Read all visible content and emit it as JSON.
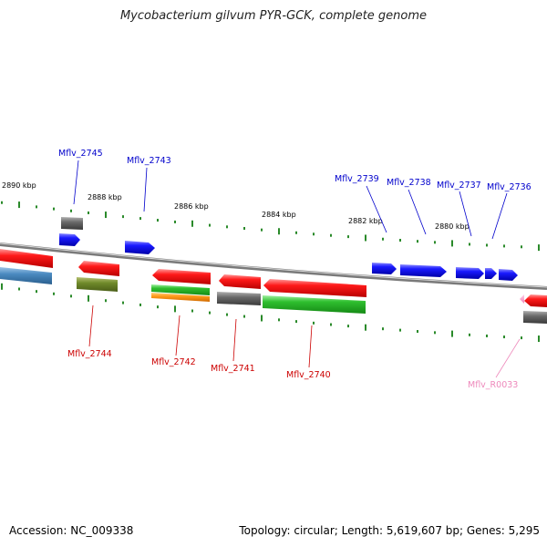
{
  "title": "Mycobacterium gilvum PYR-GCK, complete genome",
  "footer": {
    "accession": "Accession: NC_009338",
    "topology": "Topology: circular; Length: 5,619,607 bp; Genes: 5,295"
  },
  "scale_labels": [
    "2890 kbp",
    "2888 kbp",
    "2886 kbp",
    "2884 kbp",
    "2882 kbp",
    "2880 kbp"
  ],
  "colors": {
    "forward_label": "#0000cc",
    "reverse_label": "#cc0000",
    "rna_label": "#ee88bb",
    "tick": "#2a8a2a",
    "backbone": "#8c8c8c"
  },
  "gene_labels": {
    "top": [
      "Mflv_2745",
      "Mflv_2743",
      "Mflv_2739",
      "Mflv_2738",
      "Mflv_2737",
      "Mflv_2736"
    ],
    "bottom": [
      "Mflv_2744",
      "Mflv_2742",
      "Mflv_2741",
      "Mflv_2740",
      "Mflv_R0033"
    ]
  }
}
